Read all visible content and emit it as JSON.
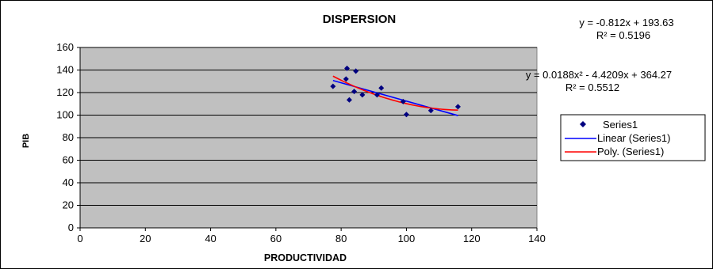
{
  "chart_data": {
    "type": "scatter",
    "title": "DISPERSION",
    "xlabel": "PRODUCTIVIDAD",
    "ylabel": "PIB",
    "xlim": [
      0,
      140
    ],
    "ylim": [
      0,
      160
    ],
    "xticks": [
      0,
      20,
      40,
      60,
      80,
      100,
      120,
      140
    ],
    "yticks": [
      0,
      20,
      40,
      60,
      80,
      100,
      120,
      140,
      160
    ],
    "grid": "horizontal",
    "plot_background": "#c0c0c0",
    "legend_position": "right",
    "series": [
      {
        "name": "Series1",
        "kind": "points",
        "color": "#000080",
        "marker": "diamond",
        "x": [
          77.5,
          81.5,
          81.8,
          82.5,
          84,
          84.5,
          86.5,
          91,
          92.3,
          99,
          100,
          107.5,
          115.8
        ],
        "y": [
          125.5,
          132,
          141.5,
          113.5,
          121,
          139,
          118,
          118,
          124,
          112,
          100.5,
          104,
          107.5
        ]
      },
      {
        "name": "Linear (Series1)",
        "kind": "trend-linear",
        "color": "#0000ff",
        "equation": "y = -0.812x + 193.63",
        "r2": "R² = 0.5196",
        "coef": [
          193.63,
          -0.812
        ],
        "x_range": [
          77.5,
          115.8
        ]
      },
      {
        "name": "Poly. (Series1)",
        "kind": "trend-poly",
        "color": "#ff0000",
        "equation": "y = 0.0188x² - 4.4209x + 364.27",
        "r2": "R² = 0.5512",
        "coef": [
          364.27,
          -4.4209,
          0.0188
        ],
        "x_range": [
          77.5,
          115.8
        ]
      }
    ]
  }
}
